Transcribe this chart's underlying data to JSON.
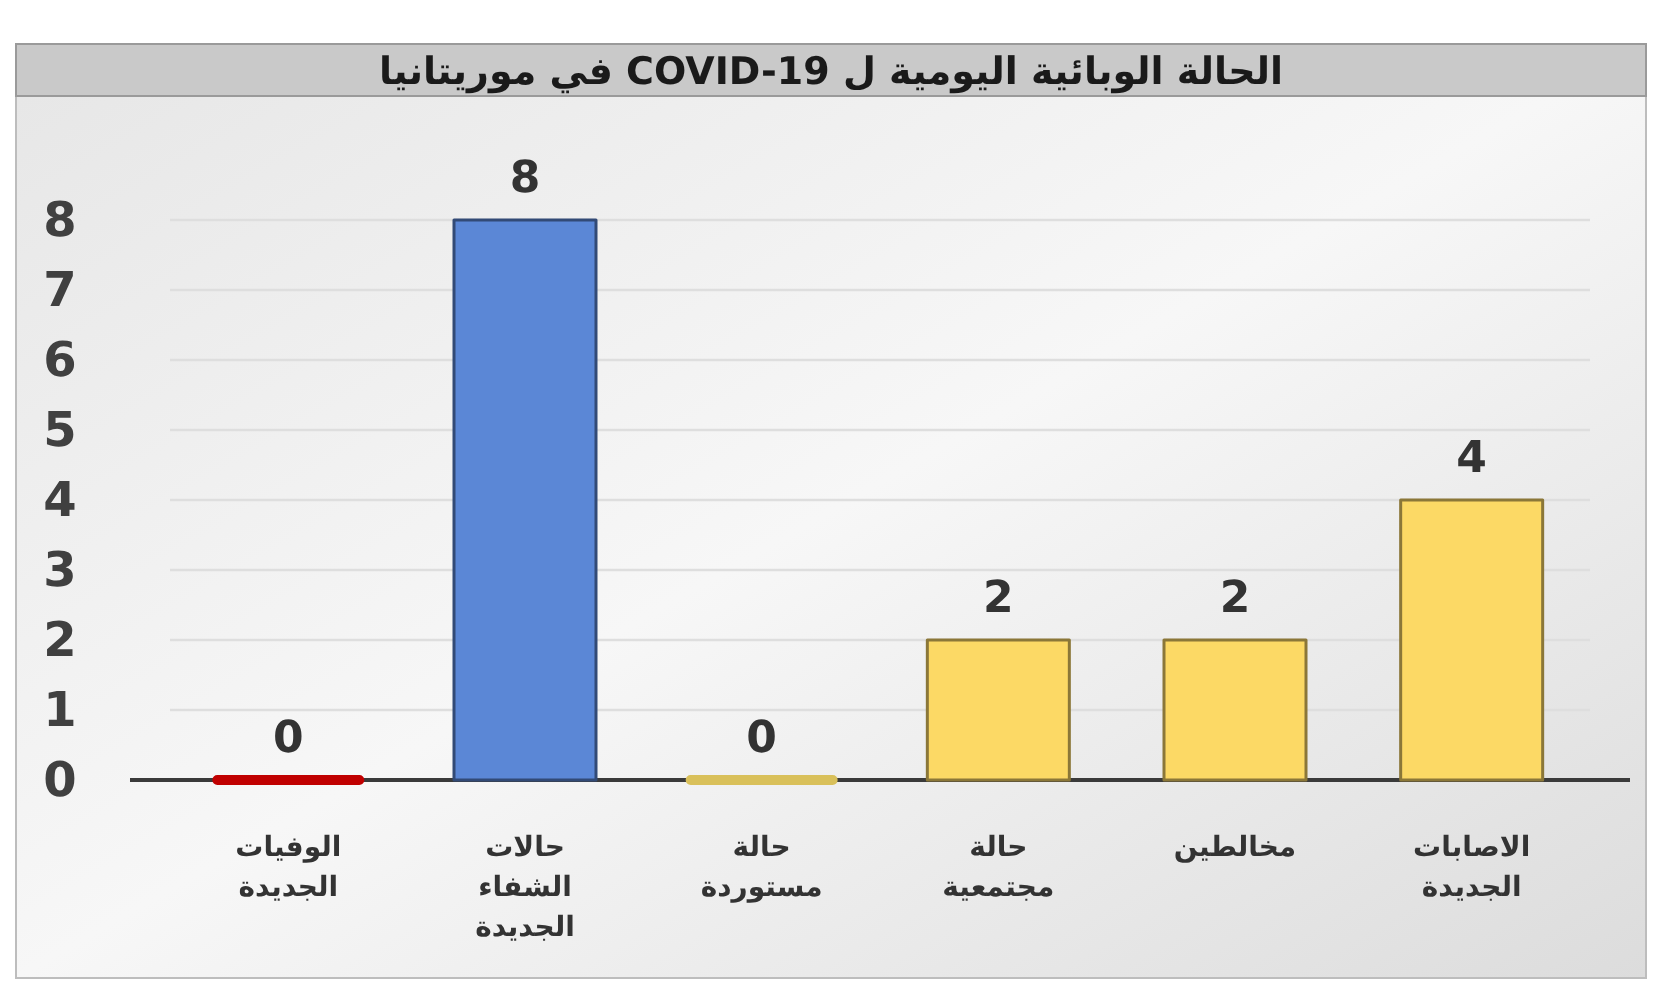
{
  "chart_data": {
    "type": "bar",
    "title": "الحالة الوبائية اليومية ل COVID-19 في موريتانيا",
    "categories": [
      "الوفيات الجديدة",
      "حالات الشفاء الجديدة",
      "حالة مستوردة",
      "حالة مجتمعية",
      "مخالطين",
      "الاصابات الجديدة"
    ],
    "values": [
      0,
      8,
      0,
      2,
      2,
      4
    ],
    "colors": [
      "#c00000",
      "#5b87d6",
      "#d9c05a",
      "#fcd965",
      "#fcd965",
      "#fcd965"
    ],
    "ylim": [
      0,
      8
    ],
    "yticks": [
      0,
      1,
      2,
      3,
      4,
      5,
      6,
      7,
      8
    ],
    "grid": "y",
    "data_labels": true
  }
}
